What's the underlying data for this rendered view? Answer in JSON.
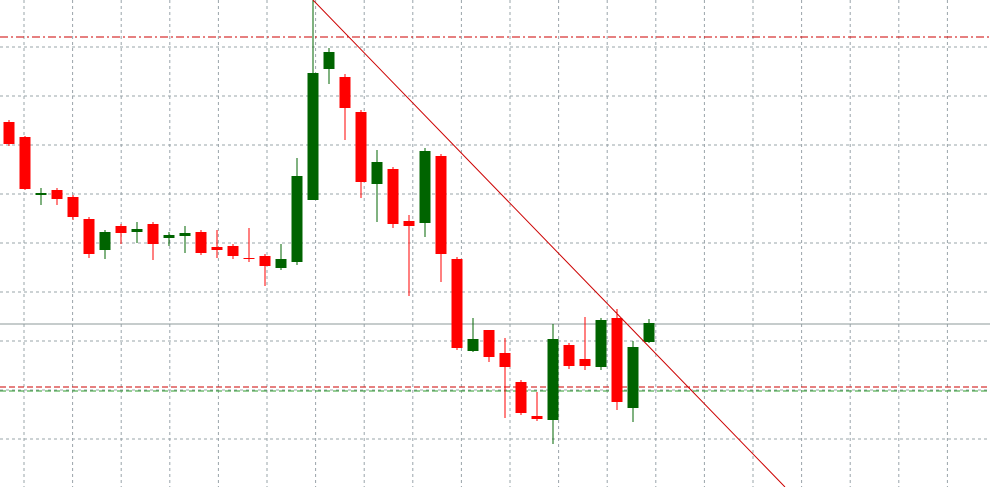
{
  "chart_data": {
    "type": "candlestick",
    "ylim": [
      0,
      487
    ],
    "grid": true,
    "up_color": "#006400",
    "down_color": "#ff0000",
    "open": [
      365,
      350,
      292,
      297,
      290,
      268,
      237,
      261,
      255,
      263,
      249,
      251,
      255,
      240,
      241,
      229,
      231,
      219,
      225,
      287,
      418,
      410,
      375,
      303,
      318,
      266,
      264,
      331,
      228,
      136,
      157,
      134,
      105,
      71,
      67,
      142,
      128,
      120,
      169,
      79,
      145
    ],
    "high": [
      367,
      351,
      299,
      299,
      292,
      270,
      257,
      263,
      265,
      265,
      255,
      261,
      257,
      257,
      243,
      259,
      233,
      243,
      329,
      487,
      439,
      413,
      377,
      337,
      320,
      272,
      339,
      333,
      230,
      169,
      157,
      149,
      107,
      95,
      163,
      144,
      170,
      169,
      178,
      146,
      168
    ],
    "low": [
      341,
      297,
      282,
      282,
      267,
      229,
      228,
      243,
      244,
      227,
      241,
      234,
      232,
      229,
      228,
      225,
      201,
      217,
      222,
      287,
      403,
      347,
      289,
      265,
      259,
      191,
      250,
      205,
      137,
      135,
      125,
      69,
      72,
      66,
      43,
      118,
      117,
      117,
      77,
      65,
      144
    ],
    "close": [
      343,
      298,
      294,
      288,
      270,
      233,
      255,
      254,
      258,
      243,
      252,
      254,
      234,
      237,
      231,
      228,
      221,
      228,
      311,
      414,
      435,
      379,
      305,
      325,
      263,
      261,
      336,
      233,
      139,
      148,
      130,
      120,
      74,
      68,
      148,
      121,
      121,
      167,
      85,
      140,
      164
    ],
    "levels": [
      {
        "value": 450,
        "color": "#cc0000",
        "style": "dashdot"
      },
      {
        "value": 163,
        "color": "#8c9a9a",
        "style": "solid"
      },
      {
        "value": 100,
        "color": "#cc0000",
        "style": "dashed"
      },
      {
        "value": 96,
        "color": "#2e9e2e",
        "style": "dashed"
      }
    ],
    "trendline": {
      "x": [
        19,
        48.5
      ],
      "values": [
        487,
        0
      ],
      "color": "#cc0000"
    }
  }
}
